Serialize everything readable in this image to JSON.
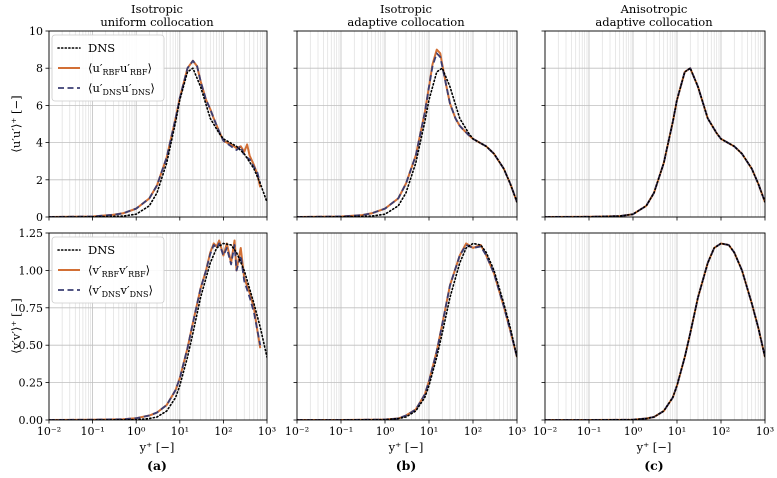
{
  "colors": {
    "dns": "#000000",
    "rbf": "#d26f35",
    "dns_interp": "#3b3e73",
    "grid": "#bfbfbf",
    "rbf_band_grid": "#cccccc"
  },
  "titles": [
    [
      "Isotropic",
      "uniform collocation"
    ],
    [
      "Isotropic",
      "adaptive collocation"
    ],
    [
      "Anisotropic",
      "adaptive collocation"
    ]
  ],
  "panel_labels": [
    "(a)",
    "(b)",
    "(c)"
  ],
  "axes": {
    "xlabel": "y⁺ [−]",
    "ylabel_top": "⟨u′u′⟩⁺ [−]",
    "ylabel_bottom": "⟨v′v′⟩⁺ [−]",
    "xticks": [
      "10⁻²",
      "10⁻¹",
      "10⁰",
      "10¹",
      "10²",
      "10³"
    ],
    "yticks_top": [
      "0",
      "2",
      "4",
      "6",
      "8",
      "10"
    ],
    "yticks_bottom": [
      "0.00",
      "0.25",
      "0.50",
      "0.75",
      "1.00",
      "1.25"
    ]
  },
  "legend_top": [
    {
      "style": "dotted",
      "main": "DNS",
      "label": "DNS"
    },
    {
      "style": "solid",
      "main": "⟨u′",
      "sub": "RBF",
      "mid": "u′",
      "sub2": "RBF",
      "end": "⟩",
      "label": "⟨u′RBF u′RBF⟩"
    },
    {
      "style": "dashed",
      "main": "⟨u′",
      "sub": "DNS",
      "mid": "u′",
      "sub2": "DNS",
      "end": "⟩",
      "label": "⟨u′DNS u′DNS⟩"
    }
  ],
  "legend_bottom": [
    {
      "style": "dotted",
      "main": "DNS",
      "label": "DNS"
    },
    {
      "style": "solid",
      "main": "⟨v′",
      "sub": "RBF",
      "mid": "v′",
      "sub2": "RBF",
      "end": "⟩",
      "label": "⟨v′RBF v′RBF⟩"
    },
    {
      "style": "dashed",
      "main": "⟨v′",
      "sub": "DNS",
      "mid": "v′",
      "sub2": "DNS",
      "end": "⟩",
      "label": "⟨v′DNS v′DNS⟩"
    }
  ],
  "chart_data": [
    {
      "type": "line",
      "panel": "a-top",
      "xscale": "log",
      "xlim": [
        0.01,
        1000
      ],
      "ylim": [
        0,
        10
      ],
      "grid": true,
      "series": [
        {
          "name": "DNS",
          "x": [
            0.01,
            0.1,
            0.5,
            1,
            2,
            3,
            5,
            8,
            10,
            15,
            20,
            30,
            50,
            80,
            100,
            200,
            300,
            500,
            700,
            1000
          ],
          "y": [
            0,
            0.01,
            0.05,
            0.15,
            0.6,
            1.3,
            2.9,
            5.1,
            6.3,
            7.8,
            8.0,
            7.0,
            5.3,
            4.5,
            4.2,
            3.8,
            3.4,
            2.6,
            1.8,
            0.8
          ]
        },
        {
          "name": "⟨u′RBF u′RBF⟩",
          "x": [
            0.01,
            0.1,
            0.3,
            0.5,
            1,
            2,
            3,
            5,
            8,
            10,
            15,
            20,
            25,
            30,
            40,
            50,
            60,
            80,
            100,
            120,
            150,
            200,
            250,
            300,
            350,
            400,
            500,
            600,
            700
          ],
          "y": [
            0,
            0.03,
            0.12,
            0.2,
            0.45,
            1.0,
            1.7,
            3.2,
            5.3,
            6.4,
            8.0,
            8.4,
            8.1,
            7.3,
            6.3,
            5.8,
            5.3,
            4.6,
            4.1,
            4.0,
            3.9,
            3.7,
            3.8,
            3.5,
            3.9,
            3.3,
            2.8,
            2.3,
            1.6
          ]
        },
        {
          "name": "⟨u′DNS u′DNS⟩",
          "x": [
            0.01,
            0.1,
            0.3,
            0.5,
            1,
            2,
            3,
            5,
            8,
            10,
            15,
            20,
            25,
            30,
            40,
            50,
            60,
            80,
            100,
            150,
            200,
            250,
            300,
            400,
            500,
            600,
            700
          ],
          "y": [
            0,
            0.03,
            0.12,
            0.2,
            0.45,
            1.0,
            1.7,
            3.2,
            5.3,
            6.4,
            8.0,
            8.4,
            8.1,
            7.3,
            6.3,
            5.8,
            5.3,
            4.6,
            4.1,
            3.8,
            3.6,
            3.8,
            3.3,
            3.1,
            2.7,
            2.4,
            1.8
          ]
        }
      ]
    },
    {
      "type": "line",
      "panel": "b-top",
      "xscale": "log",
      "xlim": [
        0.01,
        1000
      ],
      "ylim": [
        0,
        10
      ],
      "grid": true,
      "series": [
        {
          "name": "DNS",
          "x": [
            0.01,
            0.1,
            0.5,
            1,
            2,
            3,
            5,
            8,
            10,
            15,
            20,
            30,
            50,
            80,
            100,
            200,
            300,
            500,
            700,
            1000
          ],
          "y": [
            0,
            0.01,
            0.05,
            0.15,
            0.6,
            1.3,
            2.9,
            5.1,
            6.3,
            7.8,
            8.0,
            7.0,
            5.3,
            4.5,
            4.2,
            3.8,
            3.4,
            2.6,
            1.8,
            0.8
          ]
        },
        {
          "name": "⟨u′RBF u′RBF⟩",
          "x": [
            0.01,
            0.1,
            0.3,
            0.5,
            1,
            2,
            3,
            5,
            8,
            10,
            12,
            15,
            18,
            20,
            25,
            30,
            40,
            50,
            80,
            100,
            200,
            300,
            500,
            700,
            1000
          ],
          "y": [
            0,
            0.03,
            0.1,
            0.2,
            0.45,
            1.0,
            1.8,
            3.3,
            5.6,
            7.0,
            8.2,
            9.0,
            8.8,
            8.2,
            7.0,
            6.1,
            5.3,
            4.9,
            4.4,
            4.2,
            3.8,
            3.4,
            2.6,
            1.8,
            0.8
          ]
        },
        {
          "name": "⟨u′DNS u′DNS⟩",
          "x": [
            0.01,
            0.1,
            0.3,
            0.5,
            1,
            2,
            3,
            5,
            8,
            10,
            12,
            15,
            18,
            20,
            25,
            30,
            40,
            50,
            80,
            100,
            200,
            300,
            500,
            700,
            1000
          ],
          "y": [
            0,
            0.03,
            0.1,
            0.2,
            0.45,
            1.0,
            1.8,
            3.3,
            5.6,
            7.0,
            8.1,
            8.8,
            8.6,
            8.1,
            7.0,
            6.1,
            5.3,
            4.9,
            4.4,
            4.2,
            3.8,
            3.4,
            2.6,
            1.8,
            0.8
          ]
        }
      ]
    },
    {
      "type": "line",
      "panel": "c-top",
      "xscale": "log",
      "xlim": [
        0.01,
        1000
      ],
      "ylim": [
        0,
        10
      ],
      "grid": true,
      "series": [
        {
          "name": "DNS",
          "x": [
            0.01,
            0.1,
            0.5,
            1,
            2,
            3,
            5,
            8,
            10,
            15,
            20,
            30,
            50,
            80,
            100,
            200,
            300,
            500,
            700,
            1000
          ],
          "y": [
            0,
            0.01,
            0.05,
            0.15,
            0.6,
            1.3,
            2.9,
            5.1,
            6.3,
            7.8,
            8.0,
            7.0,
            5.3,
            4.5,
            4.2,
            3.8,
            3.4,
            2.6,
            1.8,
            0.8
          ]
        },
        {
          "name": "⟨u′RBF u′RBF⟩",
          "x": [
            0.01,
            0.1,
            0.5,
            1,
            2,
            3,
            5,
            8,
            10,
            15,
            20,
            30,
            50,
            80,
            100,
            200,
            300,
            500,
            700,
            1000
          ],
          "y": [
            0,
            0.01,
            0.05,
            0.15,
            0.6,
            1.3,
            2.9,
            5.1,
            6.3,
            7.8,
            8.0,
            7.0,
            5.3,
            4.5,
            4.2,
            3.8,
            3.4,
            2.6,
            1.8,
            0.8
          ]
        },
        {
          "name": "⟨u′DNS u′DNS⟩",
          "x": [
            0.01,
            0.1,
            0.5,
            1,
            2,
            3,
            5,
            8,
            10,
            15,
            20,
            30,
            50,
            80,
            100,
            200,
            300,
            500,
            700,
            1000
          ],
          "y": [
            0,
            0.01,
            0.05,
            0.15,
            0.6,
            1.3,
            2.9,
            5.1,
            6.3,
            7.8,
            8.0,
            7.0,
            5.3,
            4.5,
            4.2,
            3.8,
            3.4,
            2.6,
            1.8,
            0.8
          ]
        }
      ]
    },
    {
      "type": "line",
      "panel": "a-bottom",
      "xscale": "log",
      "xlim": [
        0.01,
        1000
      ],
      "ylim": [
        0,
        1.25
      ],
      "grid": true,
      "series": [
        {
          "name": "DNS",
          "x": [
            0.01,
            0.1,
            1,
            2,
            3,
            5,
            8,
            10,
            15,
            20,
            30,
            50,
            70,
            100,
            150,
            200,
            300,
            500,
            700,
            1000
          ],
          "y": [
            0,
            0.0,
            0.002,
            0.01,
            0.02,
            0.06,
            0.15,
            0.23,
            0.42,
            0.58,
            0.82,
            1.05,
            1.15,
            1.18,
            1.17,
            1.12,
            1.0,
            0.78,
            0.62,
            0.42
          ]
        },
        {
          "name": "⟨v′RBF v′RBF⟩",
          "x": [
            0.01,
            0.1,
            0.5,
            1,
            2,
            3,
            5,
            8,
            10,
            15,
            20,
            30,
            40,
            50,
            60,
            70,
            80,
            100,
            120,
            150,
            180,
            200,
            250,
            300,
            400,
            500,
            600,
            700
          ],
          "y": [
            0,
            0.002,
            0.005,
            0.012,
            0.03,
            0.05,
            0.1,
            0.2,
            0.28,
            0.48,
            0.65,
            0.88,
            1.0,
            1.12,
            1.18,
            1.16,
            1.2,
            1.1,
            1.18,
            1.05,
            1.2,
            1.0,
            1.15,
            0.95,
            0.85,
            0.75,
            0.6,
            0.48
          ]
        },
        {
          "name": "⟨v′DNS v′DNS⟩",
          "x": [
            0.01,
            0.1,
            0.5,
            1,
            2,
            3,
            5,
            8,
            10,
            15,
            20,
            30,
            40,
            50,
            60,
            70,
            80,
            100,
            120,
            150,
            180,
            200,
            250,
            300,
            400,
            500,
            600,
            700
          ],
          "y": [
            0,
            0.002,
            0.005,
            0.012,
            0.03,
            0.05,
            0.1,
            0.2,
            0.28,
            0.48,
            0.65,
            0.88,
            1.0,
            1.11,
            1.17,
            1.15,
            1.18,
            1.1,
            1.15,
            1.04,
            1.17,
            1.0,
            1.1,
            0.93,
            0.82,
            0.72,
            0.6,
            0.5
          ]
        }
      ]
    },
    {
      "type": "line",
      "panel": "b-bottom",
      "xscale": "log",
      "xlim": [
        0.01,
        1000
      ],
      "ylim": [
        0,
        1.25
      ],
      "grid": true,
      "series": [
        {
          "name": "DNS",
          "x": [
            0.01,
            0.1,
            1,
            2,
            3,
            5,
            8,
            10,
            15,
            20,
            30,
            50,
            70,
            100,
            150,
            200,
            300,
            500,
            700,
            1000
          ],
          "y": [
            0,
            0.0,
            0.002,
            0.01,
            0.02,
            0.06,
            0.15,
            0.23,
            0.42,
            0.58,
            0.82,
            1.05,
            1.15,
            1.18,
            1.17,
            1.12,
            1.0,
            0.78,
            0.62,
            0.42
          ]
        },
        {
          "name": "⟨v′RBF v′RBF⟩",
          "x": [
            0.01,
            0.1,
            1,
            2,
            3,
            5,
            8,
            10,
            15,
            20,
            30,
            50,
            70,
            100,
            150,
            200,
            300,
            500,
            700,
            1000
          ],
          "y": [
            0,
            0.0,
            0.003,
            0.01,
            0.03,
            0.07,
            0.17,
            0.26,
            0.46,
            0.64,
            0.9,
            1.1,
            1.18,
            1.15,
            1.17,
            1.1,
            0.98,
            0.76,
            0.6,
            0.42
          ]
        },
        {
          "name": "⟨v′DNS v′DNS⟩",
          "x": [
            0.01,
            0.1,
            1,
            2,
            3,
            5,
            8,
            10,
            15,
            20,
            30,
            50,
            70,
            100,
            150,
            200,
            300,
            500,
            700,
            1000
          ],
          "y": [
            0,
            0.0,
            0.003,
            0.01,
            0.03,
            0.07,
            0.17,
            0.26,
            0.46,
            0.64,
            0.9,
            1.1,
            1.17,
            1.15,
            1.16,
            1.1,
            0.98,
            0.76,
            0.6,
            0.42
          ]
        }
      ]
    },
    {
      "type": "line",
      "panel": "c-bottom",
      "xscale": "log",
      "xlim": [
        0.01,
        1000
      ],
      "ylim": [
        0,
        1.25
      ],
      "grid": true,
      "series": [
        {
          "name": "DNS",
          "x": [
            0.01,
            0.1,
            1,
            2,
            3,
            5,
            8,
            10,
            15,
            20,
            30,
            50,
            70,
            100,
            150,
            200,
            300,
            500,
            700,
            1000
          ],
          "y": [
            0,
            0.0,
            0.002,
            0.01,
            0.02,
            0.06,
            0.15,
            0.23,
            0.42,
            0.58,
            0.82,
            1.05,
            1.15,
            1.18,
            1.17,
            1.12,
            1.0,
            0.78,
            0.62,
            0.42
          ]
        },
        {
          "name": "⟨v′RBF v′RBF⟩",
          "x": [
            0.01,
            0.1,
            1,
            2,
            3,
            5,
            8,
            10,
            15,
            20,
            30,
            50,
            70,
            100,
            150,
            200,
            300,
            500,
            700,
            1000
          ],
          "y": [
            0,
            0.0,
            0.002,
            0.01,
            0.02,
            0.06,
            0.15,
            0.23,
            0.42,
            0.58,
            0.82,
            1.05,
            1.15,
            1.18,
            1.17,
            1.12,
            1.0,
            0.78,
            0.62,
            0.42
          ]
        },
        {
          "name": "⟨v′DNS v′DNS⟩",
          "x": [
            0.01,
            0.1,
            1,
            2,
            3,
            5,
            8,
            10,
            15,
            20,
            30,
            50,
            70,
            100,
            150,
            200,
            300,
            500,
            700,
            1000
          ],
          "y": [
            0,
            0.0,
            0.002,
            0.01,
            0.02,
            0.06,
            0.15,
            0.23,
            0.42,
            0.58,
            0.82,
            1.05,
            1.15,
            1.18,
            1.17,
            1.12,
            1.0,
            0.78,
            0.62,
            0.42
          ]
        }
      ]
    }
  ]
}
